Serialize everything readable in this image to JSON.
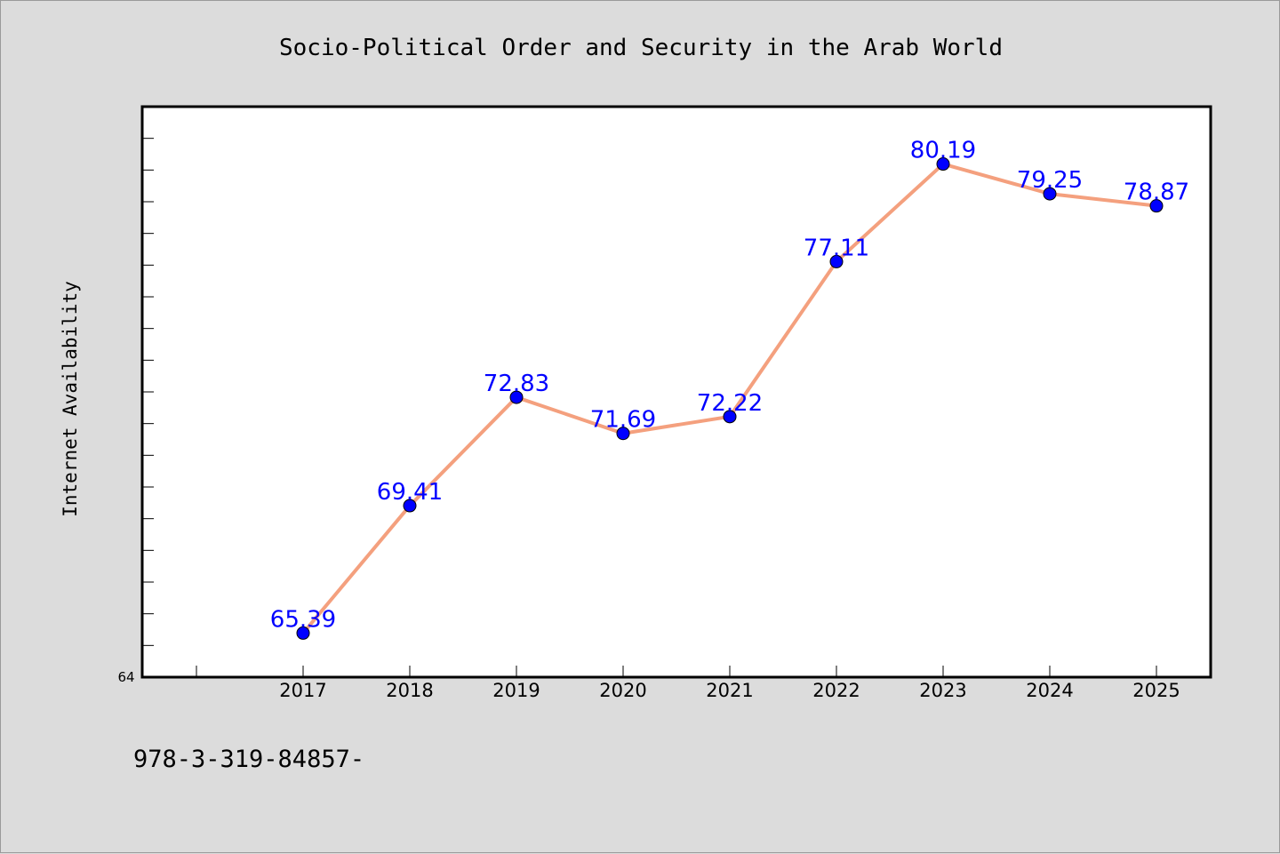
{
  "chart_data": {
    "type": "line",
    "title": "Socio-Political Order and Security in the Arab World",
    "ylabel": "Internet Availability",
    "xlabel": "",
    "categories": [
      "2017",
      "2018",
      "2019",
      "2020",
      "2021",
      "2022",
      "2023",
      "2024",
      "2025"
    ],
    "series": [
      {
        "values": [
          65.39,
          69.41,
          72.83,
          71.69,
          72.22,
          77.11,
          80.19,
          79.25,
          78.87
        ]
      }
    ],
    "data_labels": [
      "65.39",
      "69.41",
      "72.83",
      "71.69",
      "72.22",
      "77.11",
      "80.19",
      "79.25",
      "78.87"
    ],
    "ylim": [
      64,
      82
    ],
    "y_min_label": "64",
    "grid": false,
    "line_color": "#f4a07e",
    "marker_color": "#0000ff",
    "label_color": "#0000ff"
  },
  "footer": {
    "text": "978-3-319-84857-"
  }
}
